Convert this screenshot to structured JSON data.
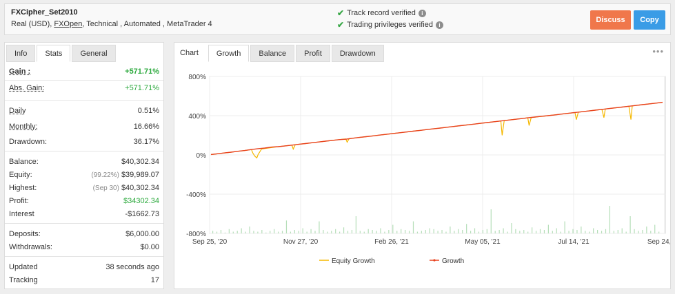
{
  "account": {
    "name": "FXCipher_Set2010",
    "meta_prefix": "Real (USD),",
    "broker": "FXOpen",
    "meta_suffix": ", Technical , Automated , MetaTrader 4"
  },
  "verification": [
    {
      "label": "Track record verified"
    },
    {
      "label": "Trading privileges verified"
    }
  ],
  "buttons": {
    "discuss": "Discuss",
    "copy": "Copy"
  },
  "left_tabs": [
    "Info",
    "Stats",
    "General"
  ],
  "stats": {
    "gain": {
      "label": "Gain :",
      "value": "+571.71%"
    },
    "abs_gain": {
      "label": "Abs. Gain:",
      "value": "+571.71%"
    },
    "daily": {
      "label": "Daily",
      "value": "0.51%"
    },
    "monthly": {
      "label": "Monthly:",
      "value": "16.66%"
    },
    "drawdown": {
      "label": "Drawdown:",
      "value": "36.17%"
    },
    "balance": {
      "label": "Balance:",
      "value": "$40,302.34"
    },
    "equity": {
      "label": "Equity:",
      "note": "(99.22%)",
      "value": "$39,989.07"
    },
    "highest": {
      "label": "Highest:",
      "note": "(Sep 30)",
      "value": "$40,302.34"
    },
    "profit": {
      "label": "Profit:",
      "value": "$34302.34"
    },
    "interest": {
      "label": "Interest",
      "value": "-$1662.73"
    },
    "deposits": {
      "label": "Deposits:",
      "value": "$6,000.00"
    },
    "withdrawals": {
      "label": "Withdrawals:",
      "value": "$0.00"
    },
    "updated": {
      "label": "Updated",
      "value": "38 seconds ago"
    },
    "tracking": {
      "label": "Tracking",
      "value": "17"
    }
  },
  "chart_tabs": [
    "Chart",
    "Growth",
    "Balance",
    "Profit",
    "Drawdown"
  ],
  "chart_data": {
    "type": "line",
    "y_ticks": [
      "800%",
      "400%",
      "0%",
      "-400%",
      "-800%"
    ],
    "ylim": [
      -800,
      800
    ],
    "x_ticks": [
      "Sep 25, '20",
      "Nov 27, '20",
      "Feb 26, '21",
      "May 05, '21",
      "Jul 14, '21",
      "Sep 24, '21"
    ],
    "series": [
      {
        "name": "Equity Growth",
        "color": "#f5b800",
        "x": [
          0,
          5,
          10,
          15,
          20,
          25,
          30,
          35,
          40,
          45,
          50,
          55,
          60,
          62,
          65,
          68,
          70,
          75,
          80,
          85,
          90,
          95,
          100,
          105,
          110,
          115,
          120,
          122,
          125,
          130,
          135,
          140,
          145,
          150,
          155,
          160,
          165,
          170,
          175,
          180,
          185,
          190,
          195,
          200,
          202,
          205,
          210,
          215,
          220,
          225,
          230,
          235,
          240,
          245,
          250,
          255,
          260,
          265,
          270,
          275,
          280,
          285,
          290,
          295,
          300,
          305,
          310,
          315,
          320,
          325,
          330,
          335,
          340,
          345,
          350,
          355,
          360,
          365,
          370,
          375,
          380,
          385,
          390,
          395,
          400,
          405,
          410,
          415,
          420,
          425,
          430,
          432,
          435,
          440,
          445,
          450,
          455,
          460,
          465,
          470,
          472,
          475,
          480,
          485,
          490,
          495,
          500,
          505,
          510,
          515,
          520,
          525,
          530,
          535,
          540,
          542,
          545,
          550,
          555,
          560,
          565,
          570,
          575,
          580,
          583,
          585,
          590,
          595,
          600,
          605,
          610,
          615,
          620,
          623,
          625,
          630,
          635,
          640,
          645,
          650,
          655,
          660,
          665,
          670
        ],
        "y": [
          4,
          8,
          12,
          16,
          20,
          24,
          28,
          33,
          37,
          41,
          45,
          50,
          55,
          20,
          -12,
          -30,
          5,
          60,
          65,
          70,
          75,
          80,
          84,
          88,
          92,
          96,
          100,
          60,
          104,
          108,
          112,
          116,
          120,
          124,
          128,
          132,
          136,
          140,
          144,
          148,
          152,
          156,
          160,
          163,
          130,
          166,
          170,
          174,
          178,
          182,
          186,
          190,
          194,
          198,
          202,
          206,
          210,
          214,
          218,
          222,
          226,
          230,
          234,
          238,
          242,
          246,
          250,
          254,
          258,
          262,
          266,
          270,
          274,
          278,
          282,
          286,
          290,
          294,
          298,
          302,
          306,
          310,
          314,
          318,
          322,
          326,
          330,
          334,
          338,
          342,
          346,
          200,
          350,
          354,
          358,
          362,
          366,
          370,
          374,
          378,
          300,
          380,
          384,
          388,
          392,
          396,
          400,
          404,
          408,
          412,
          416,
          420,
          424,
          428,
          432,
          360,
          436,
          440,
          444,
          448,
          452,
          456,
          460,
          464,
          380,
          468,
          472,
          476,
          480,
          484,
          488,
          492,
          496,
          360,
          500,
          504,
          508,
          512,
          516,
          520,
          524,
          528,
          532,
          536
        ]
      },
      {
        "name": "Growth",
        "color": "#e8421f",
        "x": [
          0,
          10,
          20,
          30,
          40,
          50,
          60,
          70,
          80,
          90,
          100,
          110,
          120,
          130,
          140,
          150,
          160,
          170,
          180,
          190,
          200,
          210,
          220,
          230,
          240,
          250,
          260,
          270,
          280,
          290,
          300,
          310,
          320,
          330,
          340,
          350,
          360,
          370,
          380,
          390,
          400,
          410,
          420,
          430,
          440,
          450,
          460,
          470,
          480,
          490,
          500,
          510,
          520,
          530,
          540,
          550,
          560,
          570,
          580,
          590,
          600,
          610,
          620,
          630,
          640,
          650,
          660,
          670
        ],
        "y": [
          4,
          12,
          20,
          28,
          37,
          45,
          55,
          64,
          70,
          80,
          84,
          92,
          100,
          108,
          116,
          124,
          132,
          140,
          148,
          156,
          160,
          170,
          178,
          186,
          194,
          202,
          210,
          218,
          226,
          234,
          242,
          250,
          258,
          266,
          274,
          282,
          290,
          298,
          306,
          314,
          322,
          330,
          338,
          346,
          354,
          362,
          370,
          378,
          386,
          394,
          400,
          408,
          416,
          424,
          432,
          440,
          448,
          456,
          464,
          472,
          480,
          488,
          496,
          504,
          512,
          520,
          528,
          536
        ]
      }
    ],
    "volume_bars": [
      3,
      2,
      4,
      1,
      5,
      2,
      3,
      6,
      2,
      8,
      3,
      2,
      4,
      1,
      3,
      5,
      2,
      3,
      15,
      2,
      4,
      3,
      6,
      2,
      5,
      3,
      14,
      4,
      2,
      3,
      5,
      2,
      7,
      3,
      4,
      20,
      3,
      2,
      5,
      4,
      3,
      6,
      2,
      4,
      10,
      3,
      5,
      4,
      3,
      14,
      2,
      3,
      4,
      6,
      5,
      3,
      4,
      2,
      8,
      3,
      5,
      4,
      11,
      3,
      6,
      2,
      4,
      5,
      28,
      3,
      4,
      6,
      2,
      12,
      5,
      3,
      4,
      2,
      7,
      3,
      5,
      4,
      10,
      3,
      6,
      2,
      14,
      3,
      5,
      4,
      8,
      3,
      2,
      6,
      4,
      3,
      5,
      32,
      3,
      4,
      6,
      2,
      20,
      5,
      3,
      4,
      8,
      3,
      10,
      2
    ],
    "legend_placement": "bottom"
  }
}
